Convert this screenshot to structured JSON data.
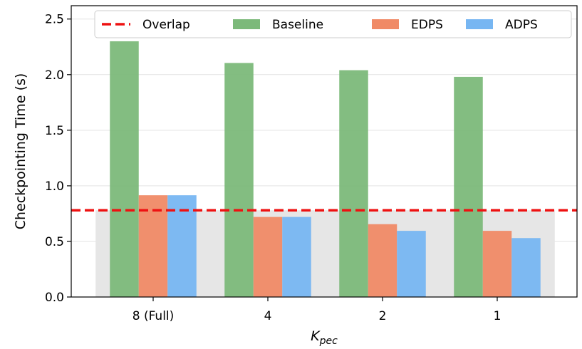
{
  "chart_data": {
    "type": "bar",
    "categories": [
      "8 (Full)",
      "4",
      "2",
      "1"
    ],
    "series": [
      {
        "name": "Baseline",
        "values": [
          2.3,
          2.105,
          2.04,
          1.98
        ],
        "color": "#7cb97a"
      },
      {
        "name": "EDPS",
        "values": [
          0.915,
          0.72,
          0.655,
          0.595
        ],
        "color": "#f08a66"
      },
      {
        "name": "ADPS",
        "values": [
          0.915,
          0.72,
          0.595,
          0.53
        ],
        "color": "#77b6f2"
      }
    ],
    "reference_line": {
      "name": "Overlap",
      "value": 0.78,
      "color": "#ee1111",
      "style": "dashed"
    },
    "shaded_region": {
      "from": 0,
      "to": 0.78,
      "color": "#e6e6e6"
    },
    "xlabel_main": "K",
    "xlabel_sub": "pec",
    "ylabel": "Checkpointing Time (s)",
    "ylim": [
      0,
      2.62
    ],
    "yticks": [
      "0.0",
      "0.5",
      "1.0",
      "1.5",
      "2.0",
      "2.5"
    ],
    "grid": "horizontal",
    "legend": {
      "placement": "top",
      "order": [
        "Overlap",
        "Baseline",
        "EDPS",
        "ADPS"
      ]
    }
  }
}
